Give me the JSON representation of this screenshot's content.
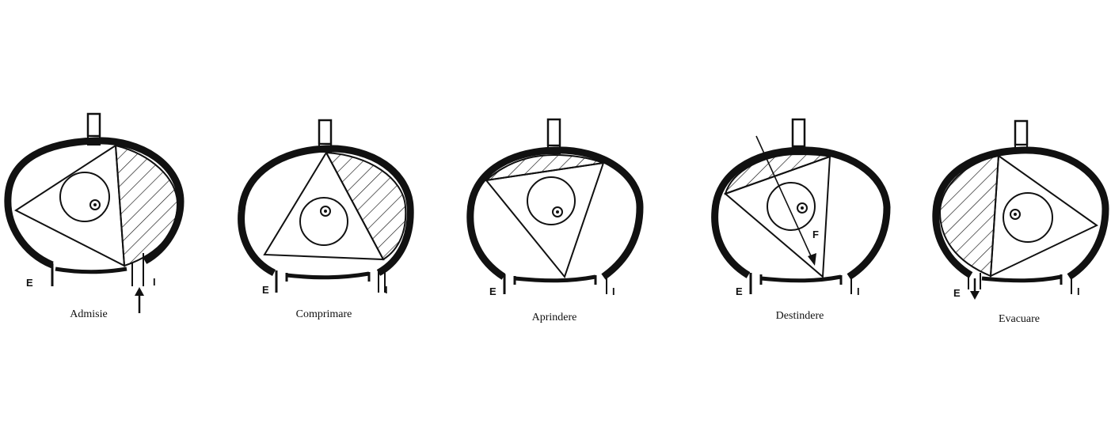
{
  "colors": {
    "ink": "#111111",
    "background": "#ffffff"
  },
  "port_labels": {
    "exhaust": "E",
    "intake": "I"
  },
  "stages": [
    {
      "caption": "Admisie",
      "intake_arrow": true
    },
    {
      "caption": "Comprimare"
    },
    {
      "caption": "Aprindere"
    },
    {
      "caption": "Destindere",
      "force_label": "F"
    },
    {
      "caption": "Evacuare",
      "exhaust_arrow": true
    }
  ]
}
